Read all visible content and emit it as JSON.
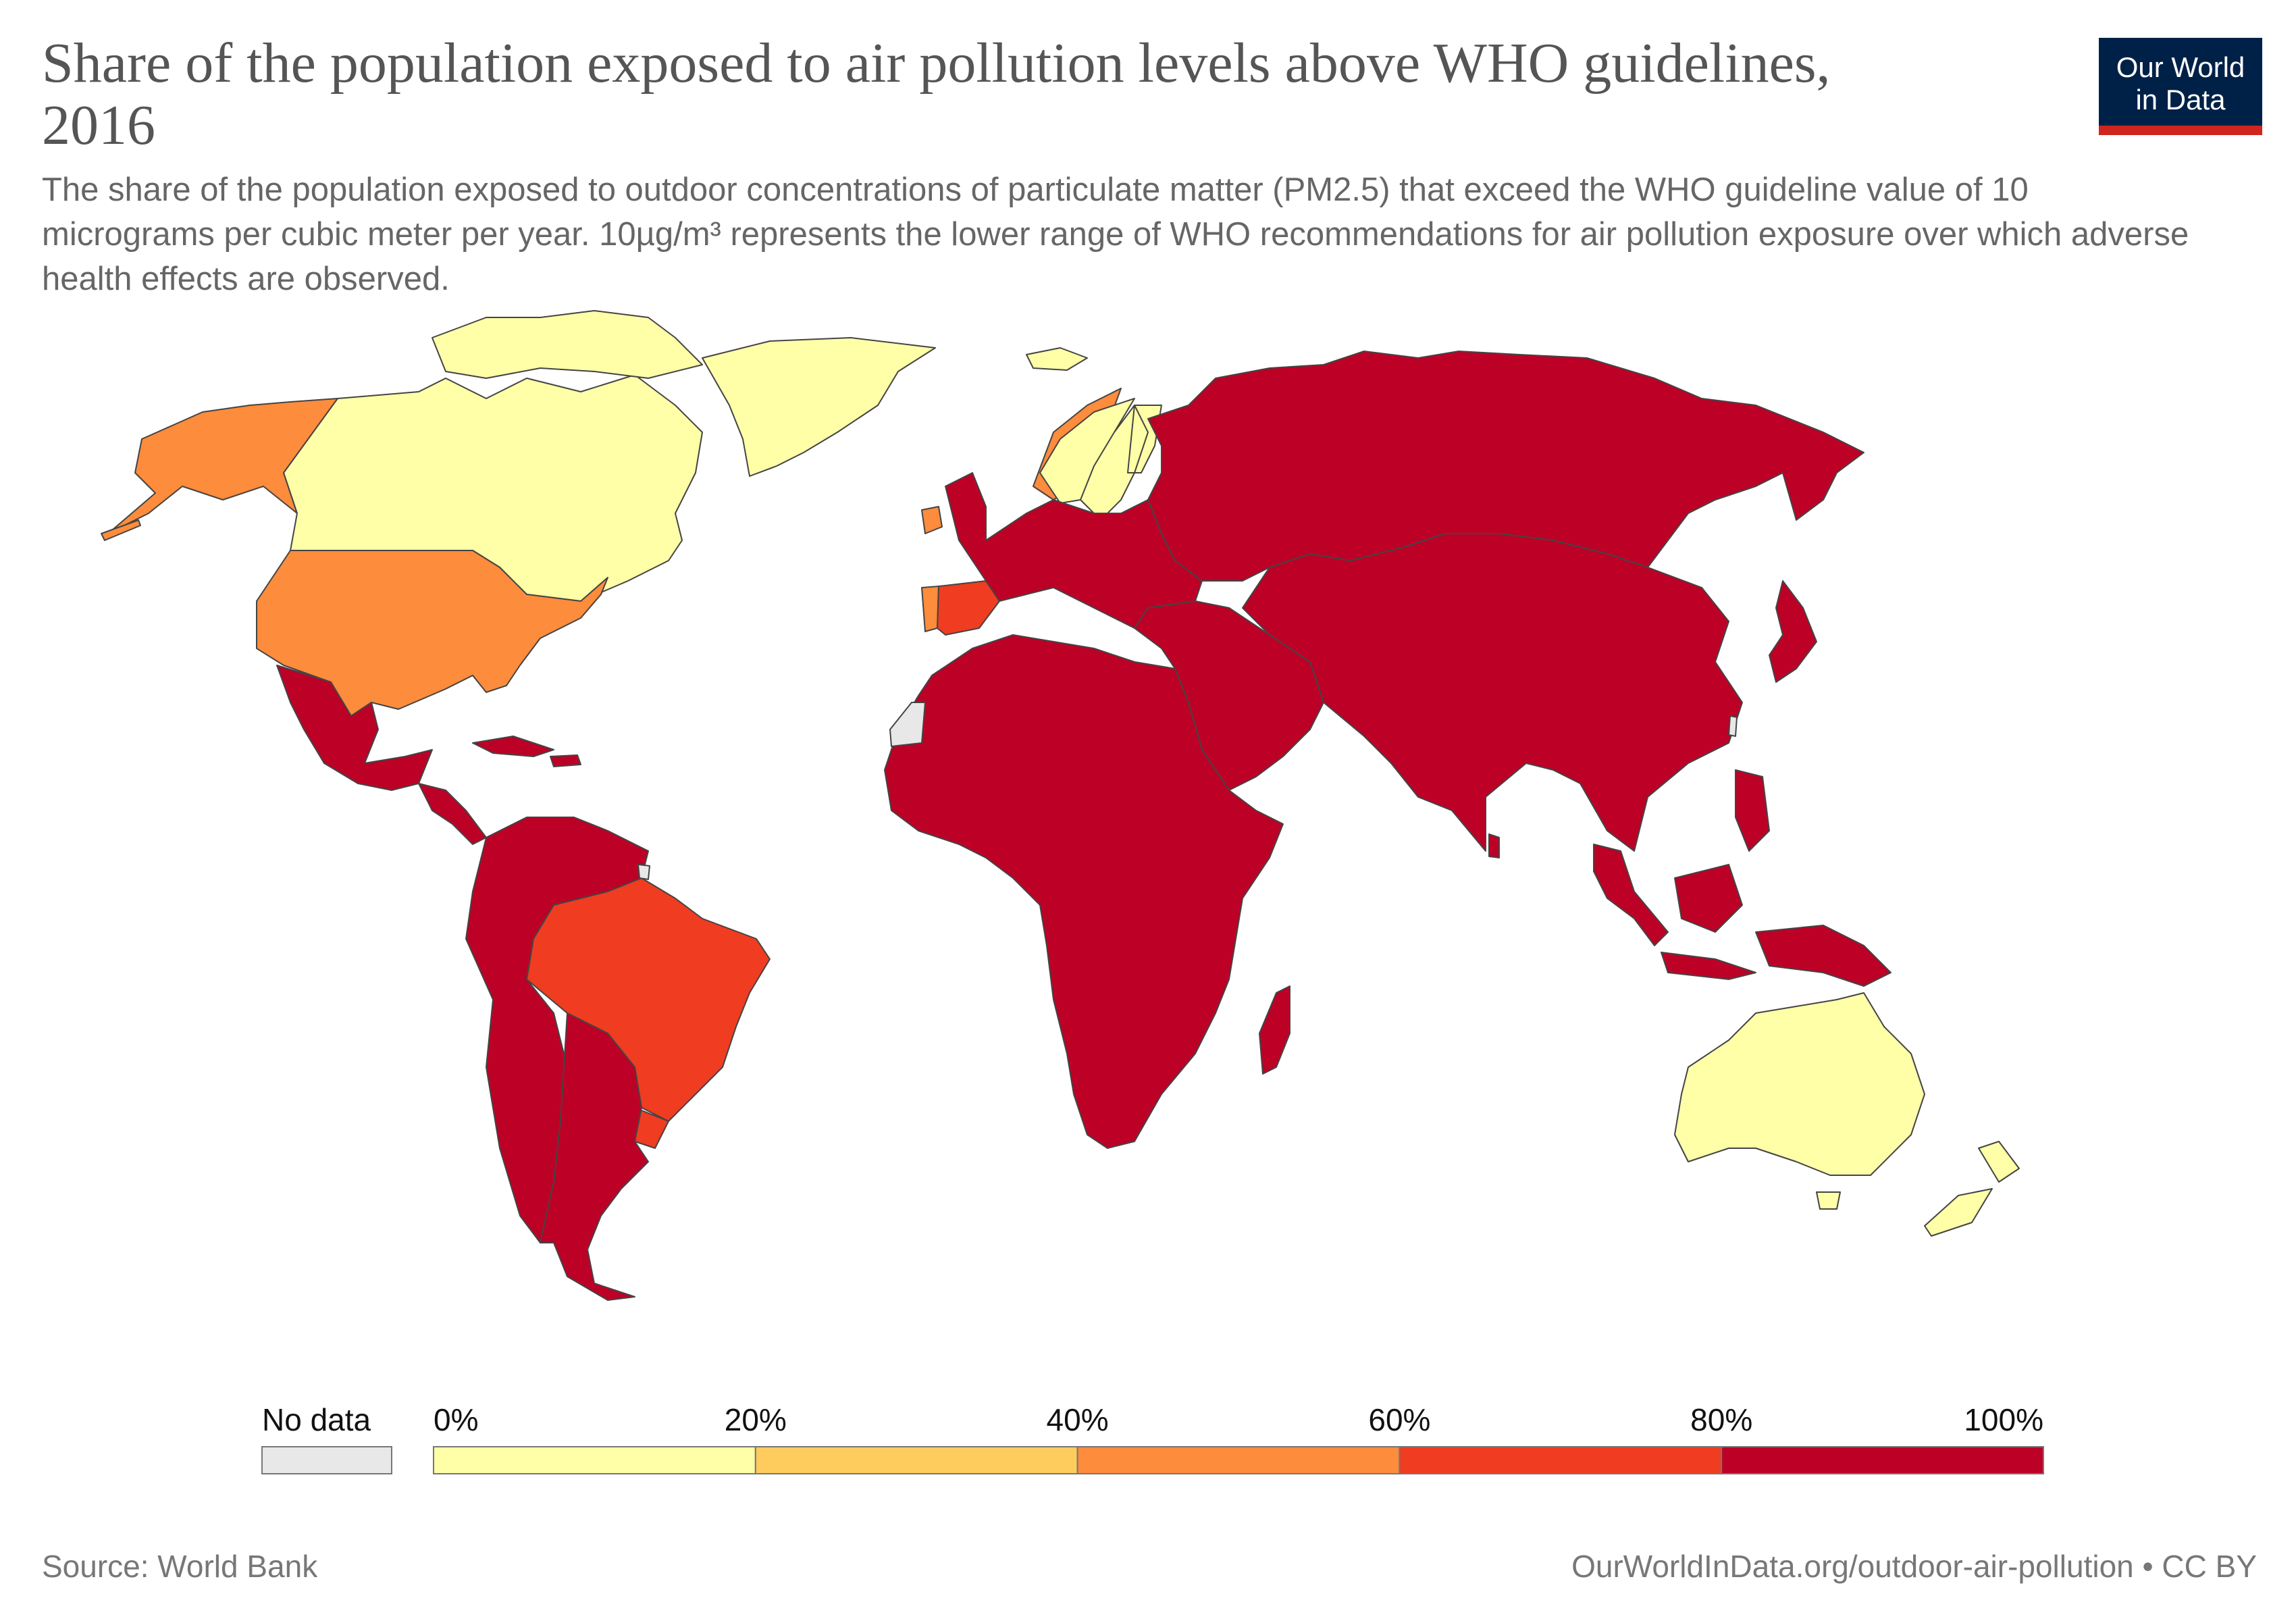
{
  "title": "Share of the population exposed to air pollution levels above WHO guidelines, 2016",
  "subtitle": "The share of the population exposed to outdoor concentrations of particulate matter (PM2.5) that exceed the WHO guideline value of 10 micrograms per cubic meter per year. 10µg/m³ represents the lower range of WHO recommendations for air pollution exposure over which adverse health effects are observed.",
  "logo": {
    "line1": "Our World",
    "line2": "in Data",
    "background": "#002147",
    "accent": "#ce261e"
  },
  "colors": {
    "no_data": "#e8e8e8",
    "bins": [
      "#ffffa8",
      "#fdcc5c",
      "#fd8c3c",
      "#f03c20",
      "#bd0026"
    ],
    "border": "#444444",
    "ocean": "#ffffff"
  },
  "legend": {
    "no_data_label": "No data",
    "ticks": [
      "0%",
      "20%",
      "40%",
      "60%",
      "80%",
      "100%"
    ]
  },
  "regions": [
    {
      "name": "Alaska (United States)",
      "bin": 2
    },
    {
      "name": "Canada",
      "bin": 0
    },
    {
      "name": "Greenland",
      "bin": 0
    },
    {
      "name": "United States",
      "bin": 2
    },
    {
      "name": "Mexico",
      "bin": 4
    },
    {
      "name": "Central America",
      "bin": 4
    },
    {
      "name": "Cuba & Caribbean",
      "bin": 4
    },
    {
      "name": "Northern South America",
      "bin": 4
    },
    {
      "name": "Brazil",
      "bin": 3
    },
    {
      "name": "Uruguay",
      "bin": 3
    },
    {
      "name": "Southern South America",
      "bin": 4
    },
    {
      "name": "Iceland",
      "bin": 0
    },
    {
      "name": "Ireland",
      "bin": 2
    },
    {
      "name": "Norway, Sweden & Finland",
      "bin": 0
    },
    {
      "name": "Portugal",
      "bin": 2
    },
    {
      "name": "Spain",
      "bin": 3
    },
    {
      "name": "Europe",
      "bin": 4
    },
    {
      "name": "Russia",
      "bin": 4
    },
    {
      "name": "Africa",
      "bin": 4
    },
    {
      "name": "Western Sahara",
      "bin": -1
    },
    {
      "name": "Madagascar",
      "bin": 4
    },
    {
      "name": "Middle East",
      "bin": 4
    },
    {
      "name": "Asia",
      "bin": 4
    },
    {
      "name": "Japan",
      "bin": 4
    },
    {
      "name": "Sri Lanka",
      "bin": 4
    },
    {
      "name": "Southeast Asia & Islands",
      "bin": 4
    },
    {
      "name": "Australia",
      "bin": 0
    },
    {
      "name": "New Zealand",
      "bin": 0
    },
    {
      "name": "French Guiana",
      "bin": -1
    },
    {
      "name": "Taiwan",
      "bin": -1
    }
  ],
  "source": "Source: World Bank",
  "url": "OurWorldInData.org/outdoor-air-pollution • CC BY"
}
